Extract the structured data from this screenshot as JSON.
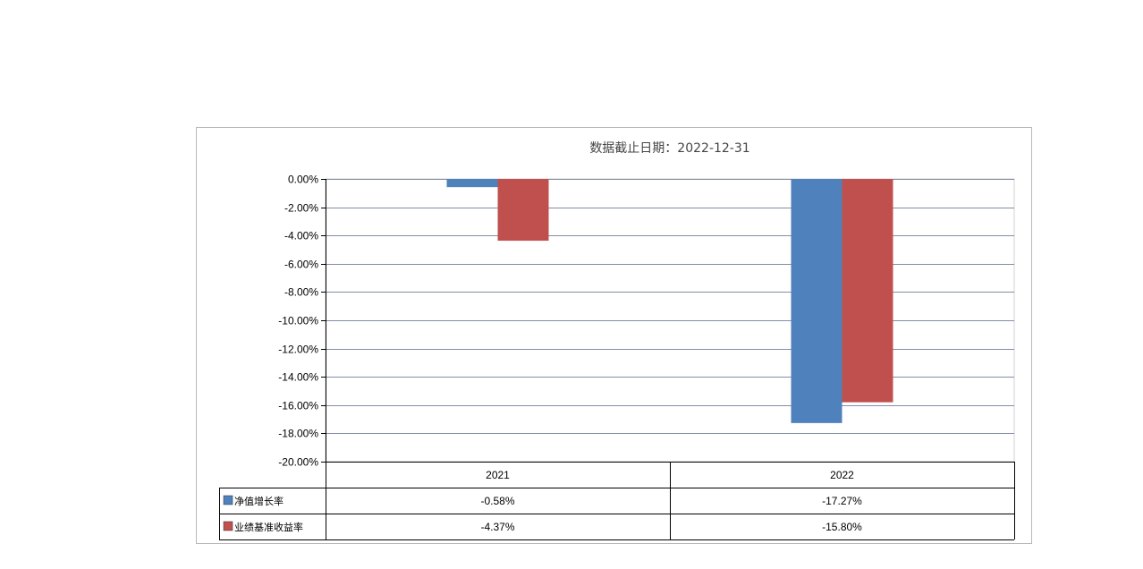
{
  "chart_data": {
    "type": "bar",
    "title": "数据截止日期：2022-12-31",
    "categories": [
      "2021",
      "2022"
    ],
    "series": [
      {
        "name": "净值增长率",
        "values": [
          -0.58,
          -17.27
        ],
        "labels": [
          "-0.58%",
          "-17.27%"
        ],
        "color": "#4f81bd"
      },
      {
        "name": "业绩基准收益率",
        "values": [
          -4.37,
          -15.8
        ],
        "labels": [
          "-4.37%",
          "-15.80%"
        ],
        "color": "#c0504d"
      }
    ],
    "ylim": [
      -20,
      0
    ],
    "yticks": [
      0,
      -2,
      -4,
      -6,
      -8,
      -10,
      -12,
      -14,
      -16,
      -18,
      -20
    ],
    "ytick_labels": [
      "0.00%",
      "-2.00%",
      "-4.00%",
      "-6.00%",
      "-8.00%",
      "-10.00%",
      "-12.00%",
      "-14.00%",
      "-16.00%",
      "-18.00%",
      "-20.00%"
    ],
    "grid": true,
    "legend": "data-table",
    "xlabel": "",
    "ylabel": ""
  }
}
